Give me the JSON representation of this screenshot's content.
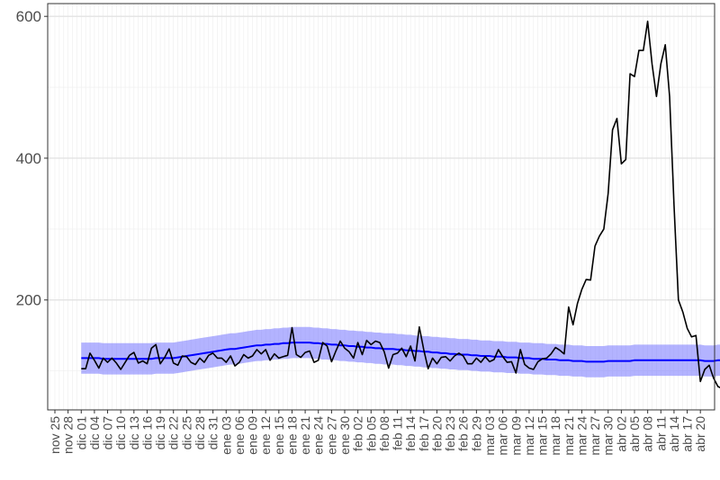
{
  "chart_data": {
    "type": "line",
    "grid": true,
    "x_start": "2019-11-25",
    "x_end": "2020-04-20",
    "x_ticks": [
      "nov 25",
      "nov 28",
      "dic 01",
      "dic 04",
      "dic 07",
      "dic 10",
      "dic 13",
      "dic 16",
      "dic 19",
      "dic 22",
      "dic 25",
      "dic 28",
      "dic 31",
      "ene 03",
      "ene 06",
      "ene 09",
      "ene 12",
      "ene 15",
      "ene 18",
      "ene 21",
      "ene 24",
      "ene 27",
      "ene 30",
      "feb 02",
      "feb 05",
      "feb 08",
      "feb 11",
      "feb 14",
      "feb 17",
      "feb 20",
      "feb 23",
      "feb 26",
      "feb 29",
      "mar 03",
      "mar 06",
      "mar 09",
      "mar 12",
      "mar 15",
      "mar 18",
      "mar 21",
      "mar 24",
      "mar 27",
      "mar 30",
      "abr 02",
      "abr 05",
      "abr 08",
      "abr 11",
      "abr 14",
      "abr 17",
      "abr 20"
    ],
    "y_ticks": [
      "200",
      "400",
      "600"
    ],
    "ylim": [
      45,
      618
    ],
    "colors": {
      "observed": "#000000",
      "expected": "#0000ff",
      "band": "#8080ff"
    },
    "observed": {
      "start": "2019-12-01",
      "values": [
        103,
        103,
        125,
        115,
        104,
        118,
        112,
        118,
        111,
        102,
        112,
        122,
        126,
        111,
        114,
        110,
        132,
        137,
        110,
        119,
        131,
        111,
        108,
        121,
        120,
        112,
        109,
        118,
        112,
        122,
        125,
        118,
        118,
        112,
        121,
        107,
        112,
        123,
        118,
        121,
        130,
        124,
        130,
        115,
        124,
        118,
        120,
        122,
        161,
        123,
        119,
        126,
        128,
        112,
        115,
        140,
        135,
        113,
        128,
        142,
        132,
        127,
        118,
        140,
        123,
        143,
        137,
        142,
        140,
        127,
        104,
        123,
        125,
        132,
        120,
        135,
        114,
        162,
        130,
        103,
        118,
        110,
        119,
        120,
        114,
        121,
        125,
        121,
        110,
        110,
        118,
        112,
        120,
        113,
        116,
        130,
        120,
        112,
        113,
        97,
        130,
        109,
        104,
        102,
        113,
        117,
        118,
        124,
        133,
        129,
        124,
        190,
        165,
        195,
        215,
        229,
        228,
        276,
        290,
        300,
        350,
        440,
        456,
        392,
        398,
        519,
        515,
        552,
        552,
        593,
        533,
        487,
        533,
        560,
        487,
        334,
        200,
        183,
        160,
        148,
        150,
        85,
        102,
        108,
        90,
        78,
        75,
        95
      ]
    },
    "expected": {
      "start": "2019-12-01",
      "values": [
        118,
        118,
        118,
        118,
        118,
        117,
        117,
        117,
        117,
        117,
        117,
        117,
        117,
        117,
        117,
        117,
        117,
        118,
        118,
        118,
        118,
        118,
        119,
        120,
        121,
        122,
        123,
        124,
        125,
        126,
        127,
        128,
        129,
        130,
        131,
        131,
        132,
        133,
        134,
        135,
        136,
        136,
        137,
        137,
        138,
        138,
        139,
        139,
        140,
        140,
        140,
        140,
        140,
        139,
        139,
        138,
        138,
        137,
        137,
        136,
        136,
        135,
        135,
        134,
        134,
        133,
        133,
        132,
        132,
        131,
        131,
        131,
        130,
        130,
        129,
        129,
        128,
        128,
        127,
        127,
        126,
        126,
        125,
        125,
        124,
        124,
        123,
        123,
        123,
        122,
        122,
        121,
        121,
        121,
        120,
        120,
        120,
        119,
        119,
        119,
        118,
        118,
        118,
        117,
        117,
        117,
        116,
        116,
        116,
        115,
        115,
        115,
        114,
        114,
        114,
        113,
        113,
        113,
        113,
        113,
        114,
        114,
        114,
        114,
        114,
        114,
        115,
        115,
        115,
        115,
        115,
        115,
        115,
        115,
        115,
        115,
        115,
        115,
        115,
        115,
        115,
        115,
        114,
        114,
        114,
        115,
        115,
        115
      ],
      "band_half_width": 22
    }
  }
}
